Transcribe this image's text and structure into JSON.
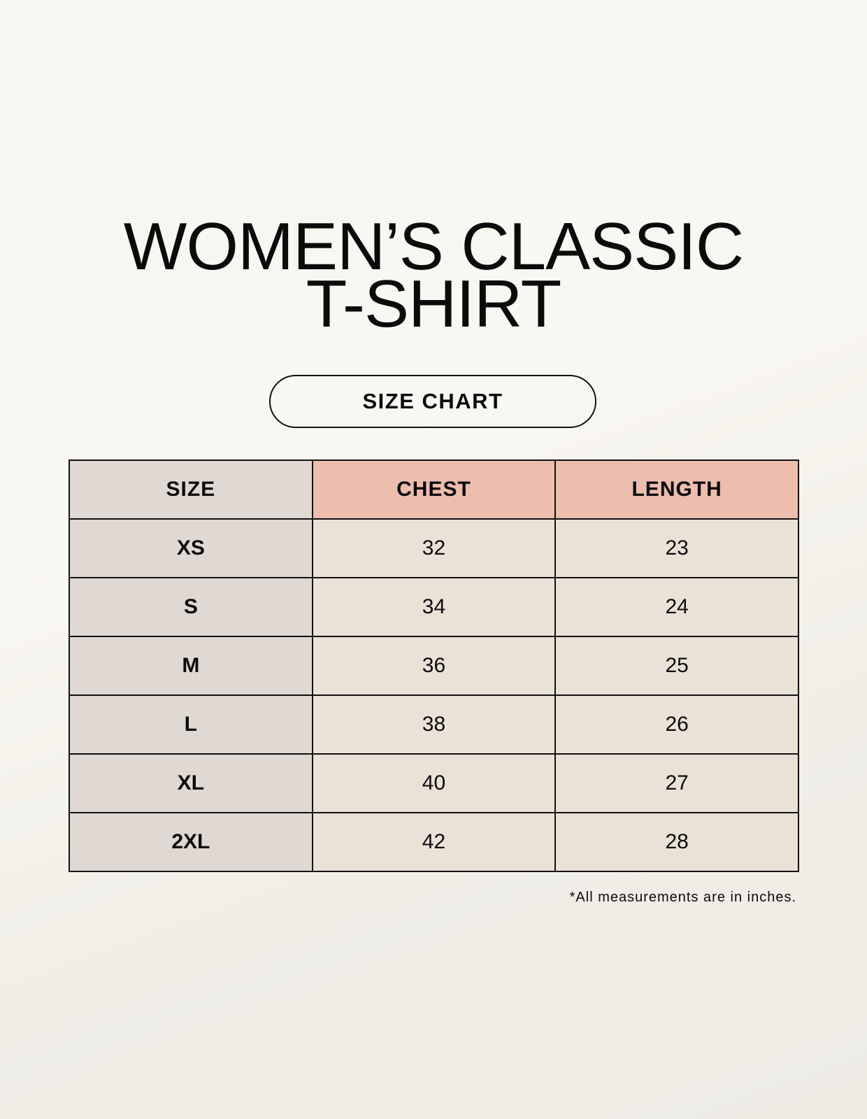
{
  "title": {
    "line1": "WOMEN’S CLASSIC",
    "line2": "T-SHIRT"
  },
  "subtitle": "SIZE CHART",
  "table": {
    "headers": [
      "SIZE",
      "CHEST",
      "LENGTH"
    ],
    "rows": [
      [
        "XS",
        "32",
        "23"
      ],
      [
        "S",
        "34",
        "24"
      ],
      [
        "M",
        "36",
        "25"
      ],
      [
        "L",
        "38",
        "26"
      ],
      [
        "XL",
        "40",
        "27"
      ],
      [
        "2XL",
        "42",
        "28"
      ]
    ]
  },
  "footnote": "*All measurements are in inches.",
  "colors": {
    "size_column": "#e0d8d2",
    "header_accent": "#edbdae",
    "cell": "#ebe2d7"
  }
}
